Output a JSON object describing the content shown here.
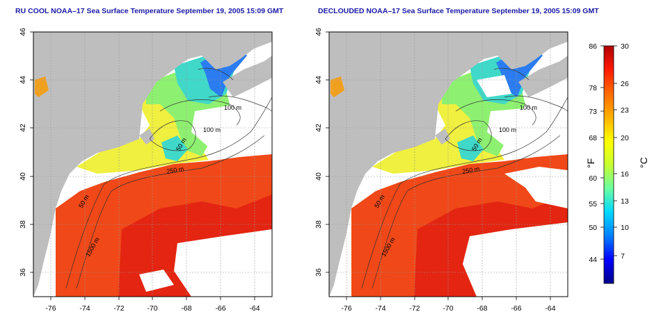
{
  "left_panel": {
    "title": "RU COOL NOAA–17 Sea Surface Temperature September 19, 2005 15:09 GMT",
    "contour_labels": [
      "100 m",
      "100 m",
      "50 m",
      "250 m",
      "50 m",
      "1500 m"
    ],
    "variant": "cool"
  },
  "right_panel": {
    "title": "DECLOUDED NOAA–17 Sea Surface Temperature September 19, 2005 15:09 GMT",
    "contour_labels": [
      "100 m",
      "100 m",
      "50 m",
      "250 m",
      "50 m",
      "1500 m"
    ],
    "variant": "declouded"
  },
  "axes": {
    "x_ticks": [
      "-76",
      "-74",
      "-72",
      "-70",
      "-68",
      "-66",
      "-64"
    ],
    "y_ticks": [
      "46",
      "44",
      "42",
      "40",
      "38",
      "36"
    ]
  },
  "colorbar": {
    "f_ticks": [
      "86",
      "78",
      "73",
      "68",
      "60",
      "55",
      "50",
      "44"
    ],
    "c_ticks": [
      "30",
      "26",
      "23",
      "20",
      "16",
      "13",
      "10",
      "7"
    ],
    "f_label": "°F",
    "c_label": "°C",
    "stops": [
      "#00008b",
      "#0000ff",
      "#0080ff",
      "#00d8ff",
      "#6affa0",
      "#c8ff30",
      "#ffff00",
      "#ffb000",
      "#ff6a00",
      "#ff1a00",
      "#b00000"
    ]
  },
  "colors": {
    "land": "#bebebe",
    "cloud": "#ffffff",
    "warm_water": "#f04818",
    "hot_water": "#e02010",
    "cold_water": "#2a7cf0",
    "teal_water": "#40d8c8",
    "green_water": "#8ef070",
    "yellow_water": "#f0f040",
    "contour": "#303030"
  }
}
